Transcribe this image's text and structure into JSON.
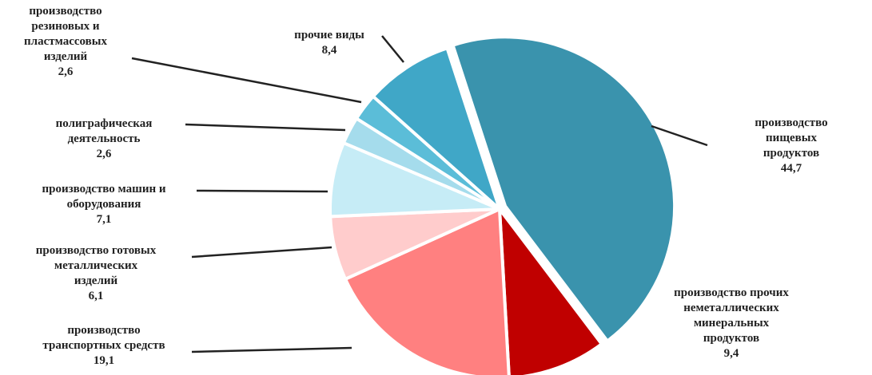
{
  "chart_data": {
    "type": "pie",
    "categories": [
      "производство\nпищевых продуктов",
      "производство прочих\nнеметаллических\nминеральных\nпродуктов",
      "производство\nтранспортных средств",
      "производство готовых\nметаллических\nизделий",
      "производство машин и\nоборудования",
      "полиграфическая\nдеятельность",
      "производство\nрезиновых и\nпластмассовых\nизделий",
      "прочие виды"
    ],
    "values": [
      44.7,
      9.4,
      19.1,
      6.1,
      7.1,
      2.6,
      2.6,
      8.4
    ],
    "value_labels": [
      "44,7",
      "9,4",
      "19,1",
      "6,1",
      "7,1",
      "2,6",
      "2,6",
      "8,4"
    ],
    "colors": [
      "#3a93ad",
      "#c00000",
      "#ff8080",
      "#ffcccc",
      "#c6ecf6",
      "#a5dcec",
      "#5bbdd8",
      "#40a7c7"
    ]
  }
}
